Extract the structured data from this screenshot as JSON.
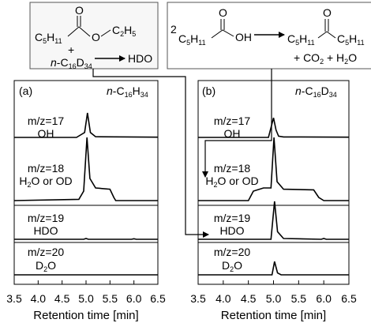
{
  "scheme": {
    "left_box": {
      "line1": {
        "reactant": [
          "C",
          "5",
          "H",
          "11"
        ],
        "ester": [
          "O",
          "C",
          "2",
          "H",
          "5"
        ],
        "carbonyl_o": "O"
      },
      "line2_plus": "+",
      "line2_solvent": [
        "n",
        "-C",
        "16",
        "D",
        "34"
      ],
      "product": "HDO"
    },
    "right_box": {
      "coefficient": "2",
      "reactant": [
        "C",
        "5",
        "H",
        "11"
      ],
      "hydroxyl": "OH",
      "carbonyl_o_reactant": "O",
      "product": [
        "C",
        "5",
        "H",
        "11"
      ],
      "product_right": [
        "C",
        "5",
        "H",
        "11"
      ],
      "carbonyl_o_product": "O",
      "byproducts": [
        "+ CO",
        "2",
        " + H",
        "2",
        "O"
      ]
    }
  },
  "panels": [
    {
      "letter": "(a)",
      "solvent": [
        "n",
        "-C",
        "16",
        "H",
        "34"
      ]
    },
    {
      "letter": "(b)",
      "solvent": [
        "n",
        "-C",
        "16",
        "D",
        "34"
      ]
    }
  ],
  "traces": [
    {
      "mz": "m/z=17",
      "species": [
        "OH"
      ]
    },
    {
      "mz": "m/z=18",
      "species": [
        "H",
        "2",
        "O or OD"
      ]
    },
    {
      "mz": "m/z=19",
      "species": [
        "HDO"
      ]
    },
    {
      "mz": "m/z=20",
      "species": [
        "D",
        "2",
        "O"
      ]
    }
  ],
  "chart_data": {
    "type": "line",
    "xlabel": "Retention time [min]",
    "xlim": [
      3.5,
      6.5
    ],
    "xticks": [
      "3.5",
      "4.0",
      "4.5",
      "5.0",
      "5.5",
      "6.0",
      "6.5"
    ],
    "panels": [
      {
        "series": [
          {
            "trace": 0,
            "shape": [
              [
                3.5,
                0
              ],
              [
                4.8,
                0
              ],
              [
                4.97,
                0.2
              ],
              [
                5.03,
                1.0
              ],
              [
                5.09,
                0.2
              ],
              [
                5.2,
                0.03
              ],
              [
                6.5,
                0.01
              ]
            ]
          },
          {
            "trace": 1,
            "shape": [
              [
                3.5,
                0
              ],
              [
                4.85,
                0.02
              ],
              [
                4.95,
                0.15
              ],
              [
                5.02,
                1.0
              ],
              [
                5.08,
                0.35
              ],
              [
                5.2,
                0.2
              ],
              [
                5.5,
                0.18
              ],
              [
                5.58,
                0.05
              ],
              [
                5.62,
                0
              ],
              [
                6.5,
                0
              ]
            ]
          },
          {
            "trace": 2,
            "shape": [
              [
                3.5,
                0
              ],
              [
                4.95,
                0
              ],
              [
                5.0,
                0.02
              ],
              [
                5.05,
                0
              ],
              [
                5.95,
                0
              ],
              [
                6.0,
                0.015
              ],
              [
                6.05,
                0
              ],
              [
                6.5,
                0
              ]
            ]
          },
          {
            "trace": 3,
            "shape": [
              [
                3.5,
                0
              ],
              [
                6.5,
                0
              ]
            ]
          }
        ]
      },
      {
        "series": [
          {
            "trace": 0,
            "shape": [
              [
                3.5,
                0
              ],
              [
                4.9,
                0
              ],
              [
                5.0,
                0.8
              ],
              [
                5.05,
                0.3
              ],
              [
                5.1,
                0.05
              ],
              [
                5.2,
                0.02
              ],
              [
                6.5,
                0.01
              ]
            ]
          },
          {
            "trace": 1,
            "shape": [
              [
                3.5,
                0
              ],
              [
                4.5,
                0
              ],
              [
                4.6,
                0.15
              ],
              [
                4.8,
                0.2
              ],
              [
                4.95,
                0.2
              ],
              [
                5.01,
                1.0
              ],
              [
                5.07,
                0.3
              ],
              [
                5.2,
                0.18
              ],
              [
                5.8,
                0.17
              ],
              [
                5.9,
                0.05
              ],
              [
                6.0,
                0
              ],
              [
                6.5,
                0
              ]
            ]
          },
          {
            "trace": 2,
            "shape": [
              [
                3.5,
                0
              ],
              [
                4.95,
                0
              ],
              [
                5.02,
                1.0
              ],
              [
                5.08,
                0.2
              ],
              [
                5.2,
                0.02
              ],
              [
                5.95,
                0
              ],
              [
                6.0,
                0.02
              ],
              [
                6.05,
                0
              ],
              [
                6.5,
                0
              ]
            ]
          },
          {
            "trace": 3,
            "shape": [
              [
                3.5,
                0
              ],
              [
                4.97,
                0
              ],
              [
                5.02,
                0.35
              ],
              [
                5.08,
                0.05
              ],
              [
                5.15,
                0
              ],
              [
                6.5,
                0
              ]
            ]
          }
        ]
      }
    ]
  }
}
